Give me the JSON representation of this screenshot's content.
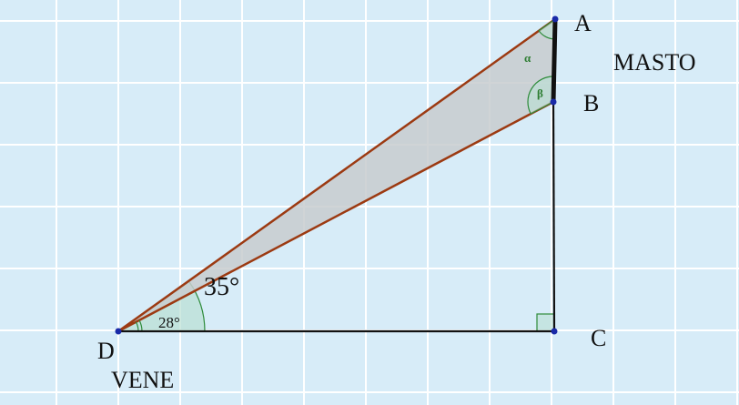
{
  "points": {
    "A": "A",
    "B": "B",
    "C": "C",
    "D": "D"
  },
  "labels": {
    "mast": "MASTO",
    "boat": "VENE"
  },
  "angles": {
    "big": "35°",
    "small": "28°",
    "alpha": "α",
    "beta": "β"
  }
}
